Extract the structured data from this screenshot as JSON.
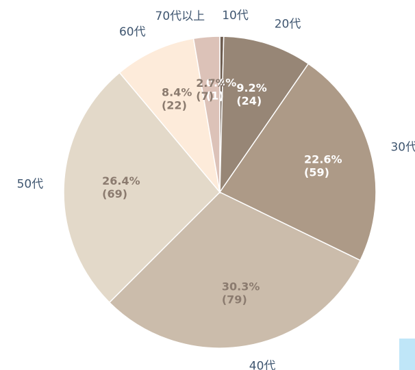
{
  "chart_data": {
    "type": "pie",
    "categories": [
      "10代",
      "20代",
      "30代",
      "40代",
      "50代",
      "60代",
      "70代以上"
    ],
    "values": [
      0.4,
      9.2,
      22.6,
      30.3,
      26.4,
      8.4,
      2.7
    ],
    "value_labels": [
      "0.4%",
      "9.2%",
      "22.6%",
      "30.3%",
      "26.4%",
      "8.4%",
      "2.7%"
    ],
    "count_labels": [
      "(1)",
      "(24)",
      "(59)",
      "(79)",
      "(69)",
      "(22)",
      "(7)"
    ],
    "colors": [
      "#6e5d50",
      "#978676",
      "#ad9a87",
      "#cbbcab",
      "#e3d9c9",
      "#fdebda",
      "#dcc2b8"
    ]
  }
}
